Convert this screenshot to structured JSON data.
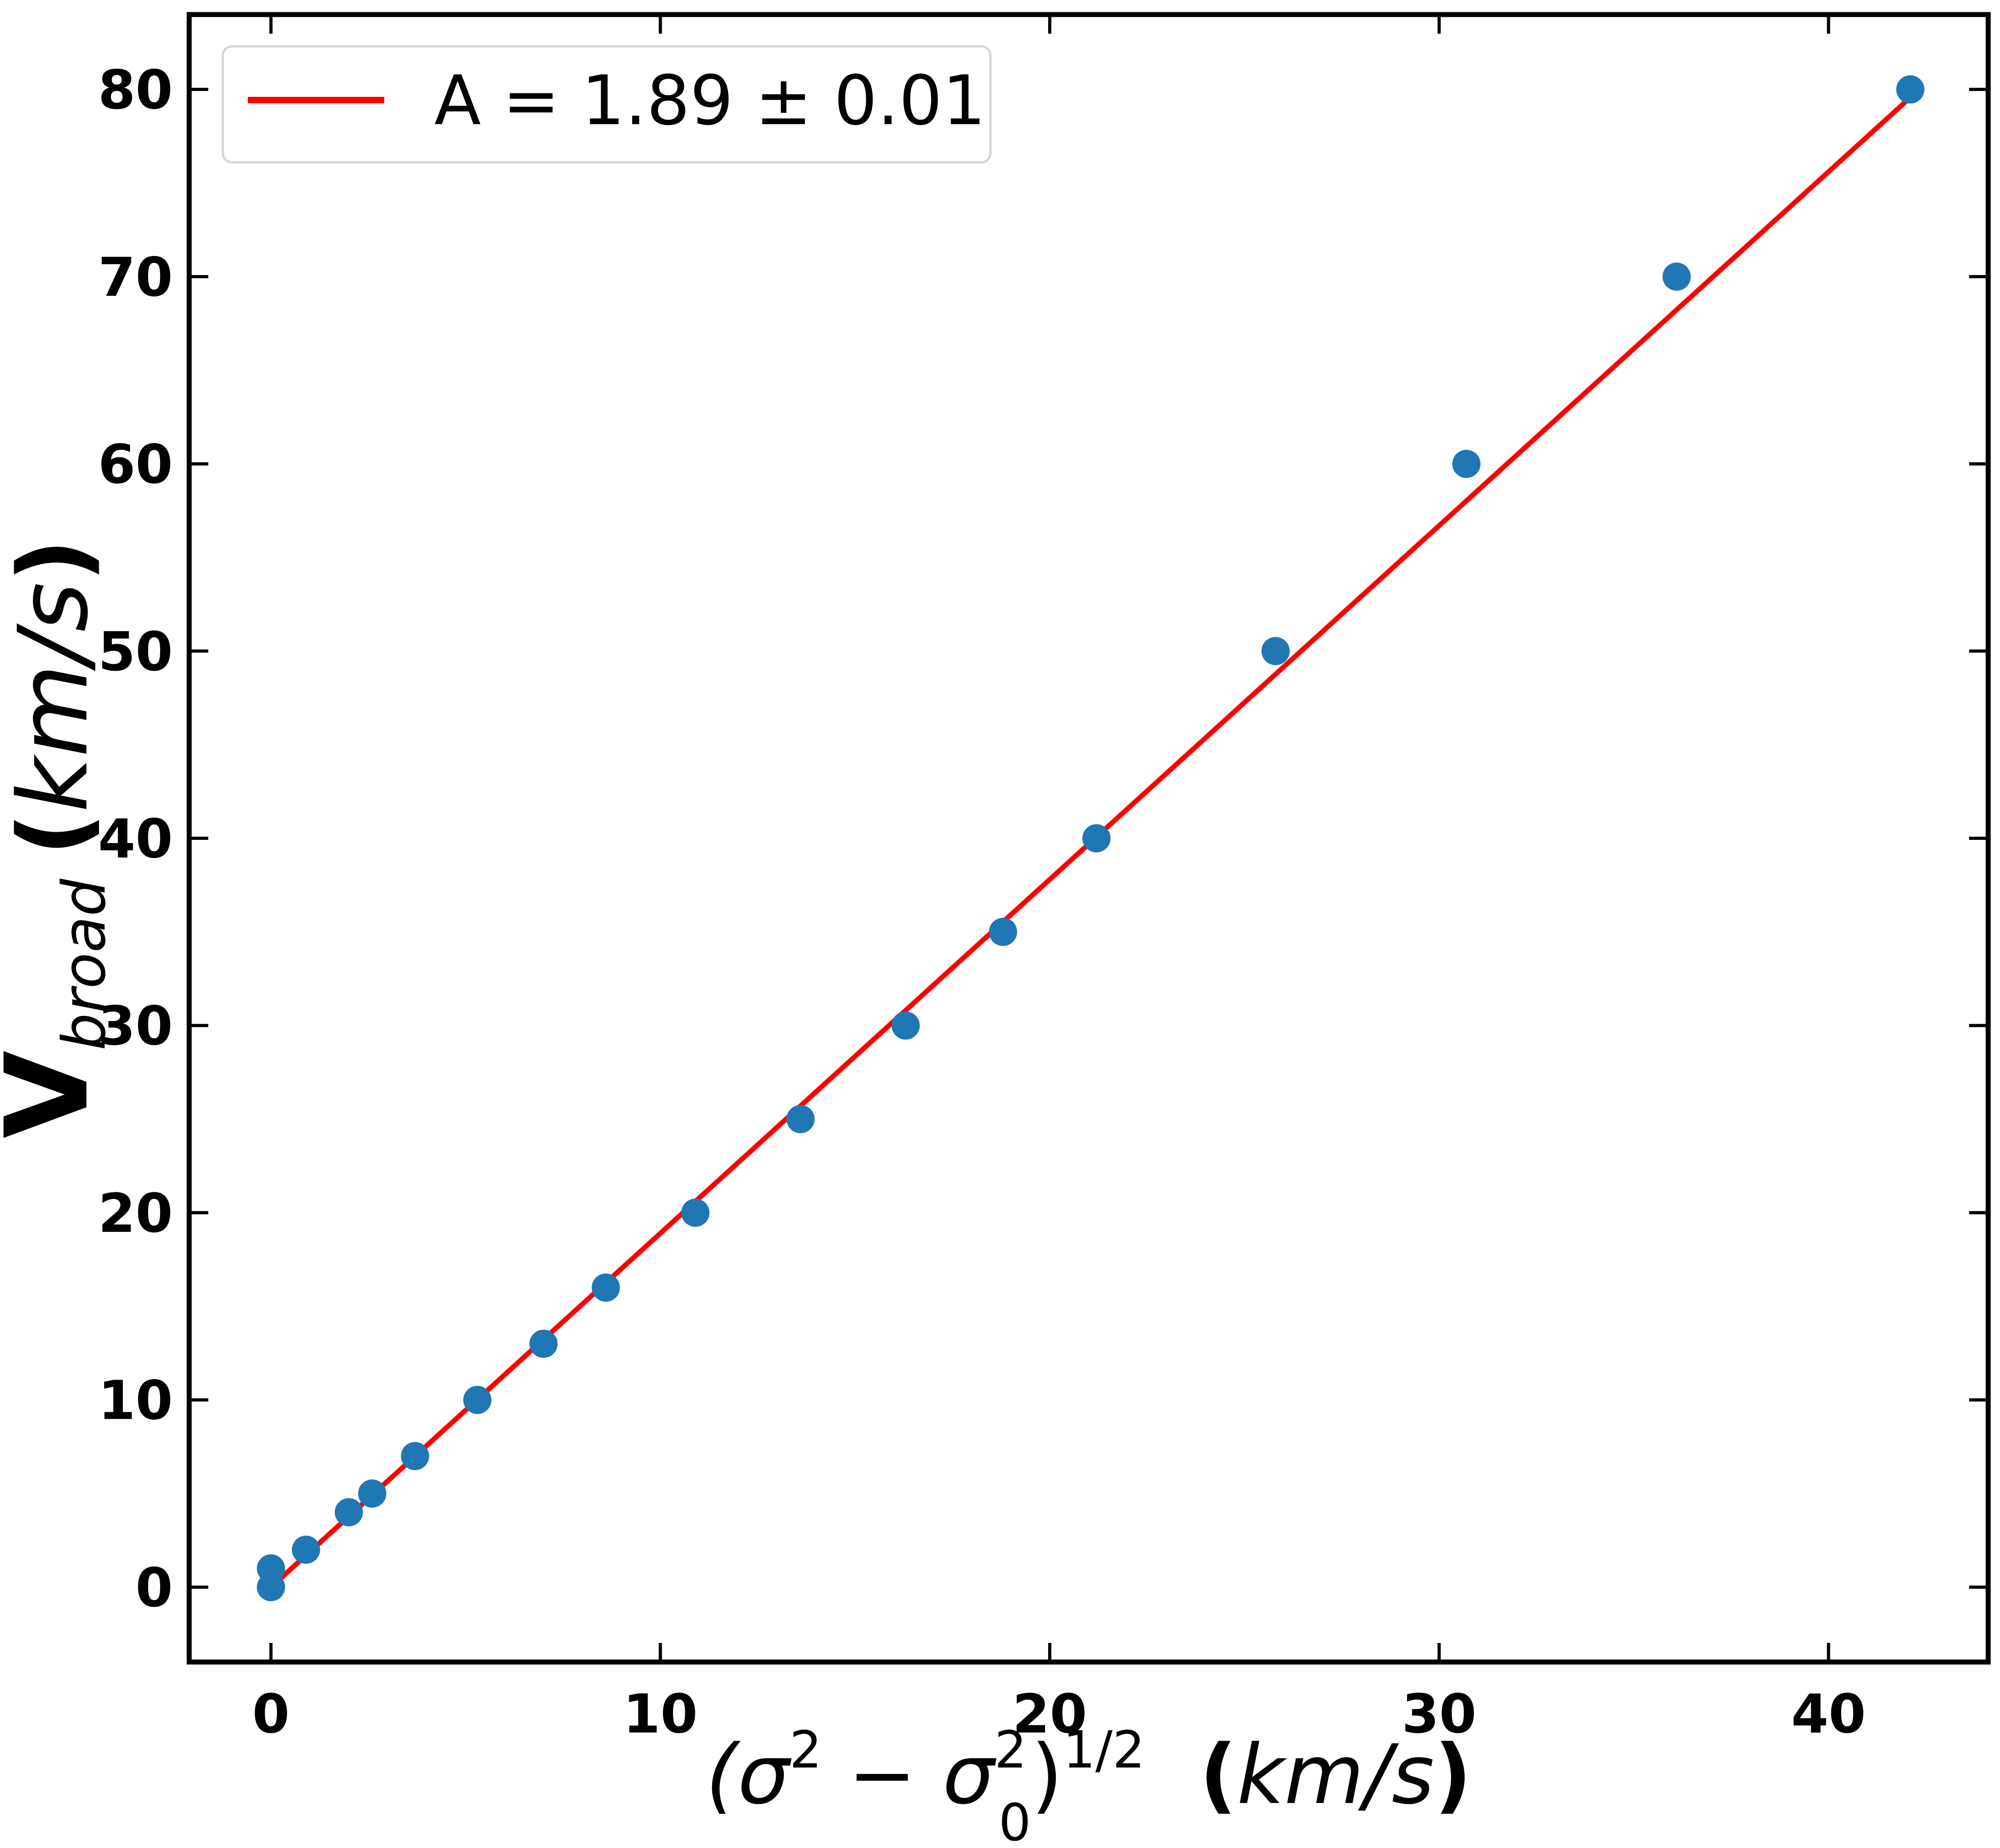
{
  "chart_data": {
    "type": "scatter",
    "title": "",
    "xlim": [
      -2.1,
      44.1
    ],
    "ylim": [
      -4,
      84
    ],
    "xticks": [
      0,
      10,
      20,
      30,
      40
    ],
    "yticks": [
      0,
      10,
      20,
      30,
      40,
      50,
      60,
      70,
      80
    ],
    "xtick_labels": [
      "0",
      "10",
      "20",
      "30",
      "40"
    ],
    "ytick_labels": [
      "0",
      "10",
      "20",
      "30",
      "40",
      "50",
      "60",
      "70",
      "80"
    ],
    "xlabel": {
      "open_paren": "(",
      "sigma": "σ",
      "exp2": "2",
      "minus": " − ",
      "sigma0": "σ",
      "sub0": "0",
      "sup2": "2",
      "close_paren": ")",
      "exp_half": "1/2",
      "unit_open": "(",
      "unit": "km/s",
      "unit_close": ")"
    },
    "ylabel": {
      "main": "V",
      "sub": "broad",
      "unit_open": "(",
      "unit": "km/s",
      "unit_close": ")"
    },
    "legend": {
      "location": "top-left",
      "entries": [
        {
          "label": "A = 1.89 ± 0.01",
          "color": "#ff0000",
          "kind": "line"
        }
      ]
    },
    "grid": false,
    "series": [
      {
        "kind": "points",
        "color": "#1f77b4",
        "x": [
          0.0,
          0.0,
          0.9,
          2.0,
          2.6,
          3.7,
          5.3,
          7.0,
          8.6,
          10.9,
          13.6,
          16.3,
          18.8,
          21.2,
          25.8,
          30.7,
          36.1,
          42.1
        ],
        "y": [
          0,
          1,
          2,
          4,
          5,
          7,
          10,
          13,
          16,
          20,
          25,
          30,
          35,
          40,
          50,
          60,
          70,
          80
        ]
      },
      {
        "kind": "fit-line",
        "color": "#ff0000",
        "x": [
          0.0,
          42.1
        ],
        "y": [
          0.0,
          79.57
        ]
      }
    ]
  }
}
